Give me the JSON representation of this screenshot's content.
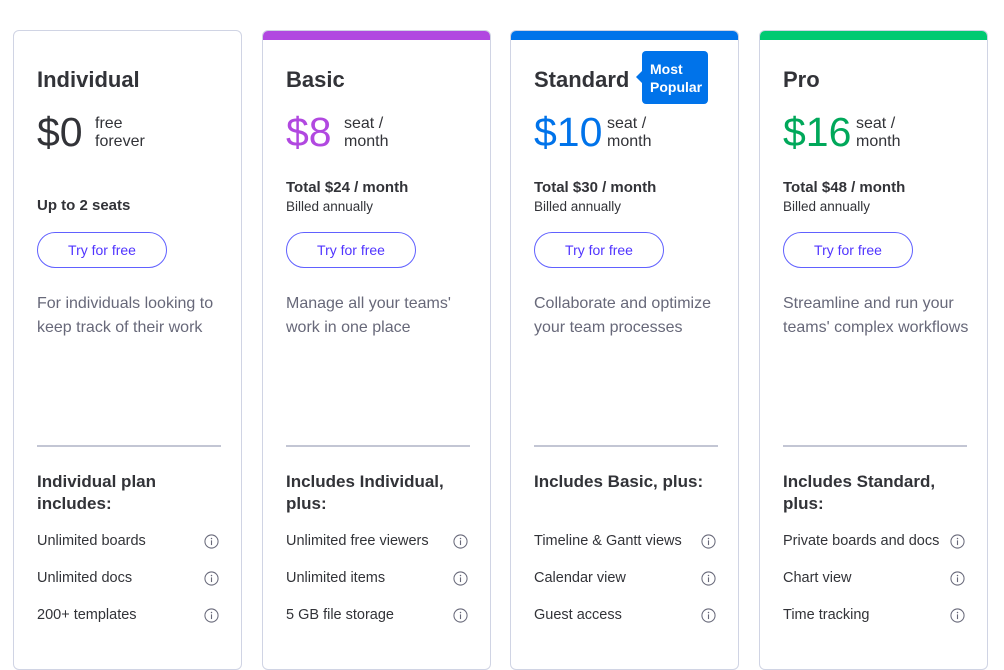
{
  "plans": [
    {
      "name": "Individual",
      "price": "$0",
      "price_unit": "free forever",
      "seats": "Up to 2 seats",
      "button": "Try for free",
      "description": "For individuals looking to keep track of their work",
      "includes_title": "Individual plan includes:",
      "features": [
        "Unlimited boards",
        "Unlimited docs",
        "200+ templates"
      ]
    },
    {
      "name": "Basic",
      "price": "$8",
      "price_unit": "seat / month",
      "total": "Total $24 / month",
      "billing": "Billed annually",
      "button": "Try for free",
      "description": "Manage all your teams' work in one place",
      "includes_title": "Includes Individual, plus:",
      "features": [
        "Unlimited free viewers",
        "Unlimited items",
        "5 GB file storage"
      ]
    },
    {
      "name": "Standard",
      "badge": "Most Popular",
      "price": "$10",
      "price_unit": "seat / month",
      "total": "Total $30 / month",
      "billing": "Billed annually",
      "button": "Try for free",
      "description": "Collaborate and optimize your team processes",
      "includes_title": "Includes Basic, plus:",
      "features": [
        "Timeline & Gantt views",
        "Calendar view",
        "Guest access"
      ]
    },
    {
      "name": "Pro",
      "price": "$16",
      "price_unit": "seat / month",
      "total": "Total $48 / month",
      "billing": "Billed annually",
      "button": "Try for free",
      "description": "Streamline and run your teams' complex workflows",
      "includes_title": "Includes Standard, plus:",
      "features": [
        "Private boards and docs",
        "Chart view",
        "Time tracking"
      ]
    }
  ]
}
